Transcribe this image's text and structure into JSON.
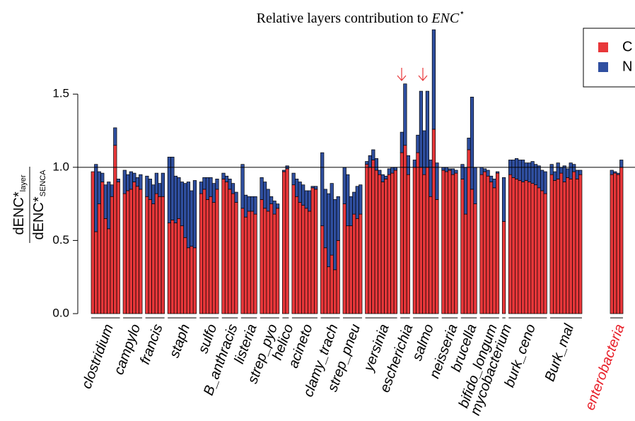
{
  "chart_data": {
    "type": "stacked_bar",
    "title": "Relative layers contribution to ",
    "title_math": "ENC",
    "title_sup": "⋆",
    "ylabel": {
      "numerator": "dENC*",
      "numerator_sub": "layer",
      "denominator": "dENC*",
      "denominator_sub": "SENCA"
    },
    "categories": [
      "clostridium",
      "campylo",
      "francis",
      "staph",
      "sulfo",
      "B_anthracis",
      "listeria",
      "strep_pyo",
      "helico",
      "acineto",
      "clamy_trach",
      "strep_pneu",
      "yersinia",
      "escherichia",
      "salmo",
      "neisseria",
      "brucella",
      "bifido_longum",
      "mycobacterium",
      "burk_ceno",
      "Burk_mal",
      "enterobacteria"
    ],
    "highlight_category": 21,
    "highlight_color": "#e8202a",
    "series": [
      {
        "name": "C",
        "color": "#e8373a",
        "values": [
          [
            0.97,
            0.56,
            0.75,
            0.9,
            0.65,
            0.58,
            0.8,
            1.15,
            0.9
          ],
          [
            0.82,
            0.84,
            0.85,
            0.9,
            0.87,
            0.85
          ],
          [
            0.8,
            0.78,
            0.75,
            0.82,
            0.8,
            0.8
          ],
          [
            0.62,
            0.64,
            0.62,
            0.65,
            0.6,
            0.52,
            0.45,
            0.46,
            0.45
          ],
          [
            0.82,
            0.85,
            0.78,
            0.8,
            0.76,
            0.85
          ],
          [
            0.92,
            0.9,
            0.85,
            0.82,
            0.76
          ],
          [
            0.72,
            0.66,
            0.7,
            0.7,
            0.68
          ],
          [
            0.78,
            0.72,
            0.7,
            0.75,
            0.68,
            0.72
          ],
          [
            0.97,
            0.99
          ],
          [
            0.88,
            0.8,
            0.76,
            0.74,
            0.72,
            0.7,
            0.86,
            0.85
          ],
          [
            0.6,
            0.45,
            0.32,
            0.4,
            0.3,
            0.5
          ],
          [
            0.75,
            0.6,
            0.6,
            0.68,
            0.65,
            0.68
          ],
          [
            1.02,
            1.0,
            1.05,
            0.98,
            0.95,
            0.9,
            0.92,
            0.95,
            0.96,
            0.98
          ],
          [
            1.1,
            1.15,
            0.95
          ],
          [
            1.0,
            1.1,
            1.0,
            0.95,
            1.0,
            0.8,
            1.26,
            0.78
          ],
          [
            0.98,
            0.97,
            0.98,
            0.95,
            0.96
          ],
          [
            0.92,
            0.68,
            1.12,
            0.85,
            0.75
          ],
          [
            0.95,
            0.97,
            0.94,
            0.9,
            0.86,
            0.96
          ],
          [
            0.63
          ],
          [
            0.95,
            0.93,
            0.92,
            0.91,
            0.9,
            0.91,
            0.9,
            0.89,
            0.88,
            0.86,
            0.84,
            0.82
          ],
          [
            0.95,
            0.91,
            0.92,
            0.96,
            0.9,
            0.93,
            0.92,
            0.97,
            0.92,
            0.95
          ],
          [
            0.95,
            0.96,
            0.95,
            1.0
          ]
        ]
      },
      {
        "name": "N",
        "color": "#2f4fa0",
        "values": [
          [
            0.0,
            0.46,
            0.22,
            0.06,
            0.23,
            0.32,
            0.08,
            0.12,
            0.02
          ],
          [
            0.16,
            0.11,
            0.12,
            0.06,
            0.06,
            0.1
          ],
          [
            0.14,
            0.14,
            0.13,
            0.14,
            0.09,
            0.16
          ],
          [
            0.45,
            0.43,
            0.32,
            0.28,
            0.3,
            0.37,
            0.45,
            0.38,
            0.46
          ],
          [
            0.08,
            0.08,
            0.15,
            0.13,
            0.13,
            0.07
          ],
          [
            0.04,
            0.04,
            0.07,
            0.07,
            0.07
          ],
          [
            0.3,
            0.15,
            0.1,
            0.1,
            0.12
          ],
          [
            0.15,
            0.18,
            0.15,
            0.05,
            0.09,
            0.03
          ],
          [
            0.01,
            0.02
          ],
          [
            0.08,
            0.12,
            0.14,
            0.14,
            0.12,
            0.14,
            0.01,
            0.02
          ],
          [
            0.5,
            0.4,
            0.5,
            0.49,
            0.48,
            0.3
          ],
          [
            0.25,
            0.35,
            0.2,
            0.15,
            0.22,
            0.2
          ],
          [
            0.02,
            0.08,
            0.07,
            0.08,
            0.03,
            0.05,
            0.02,
            0.04,
            0.04,
            0.02
          ],
          [
            0.14,
            0.42,
            0.13
          ],
          [
            0.05,
            0.12,
            0.52,
            0.3,
            0.52,
            0.25,
            0.68,
            0.25
          ],
          [
            0.02,
            0.03,
            0.01,
            0.04,
            0.02
          ],
          [
            0.1,
            0.32,
            0.08,
            0.63,
            0.25
          ],
          [
            0.05,
            0.02,
            0.04,
            0.04,
            0.06,
            0.01
          ],
          [
            0.3
          ],
          [
            0.1,
            0.12,
            0.14,
            0.14,
            0.15,
            0.12,
            0.13,
            0.15,
            0.14,
            0.15,
            0.14,
            0.15
          ],
          [
            0.07,
            0.06,
            0.11,
            0.04,
            0.11,
            0.06,
            0.11,
            0.05,
            0.06,
            0.03
          ],
          [
            0.03,
            0.01,
            0.01,
            0.05
          ]
        ]
      }
    ],
    "ylim": [
      0,
      1.95
    ],
    "yticks": [
      {
        "value": 0,
        "label": "0.0"
      },
      0.5,
      {
        "value": 1,
        "label": "1.0"
      },
      1.5
    ],
    "reference_line": 1
  }
}
